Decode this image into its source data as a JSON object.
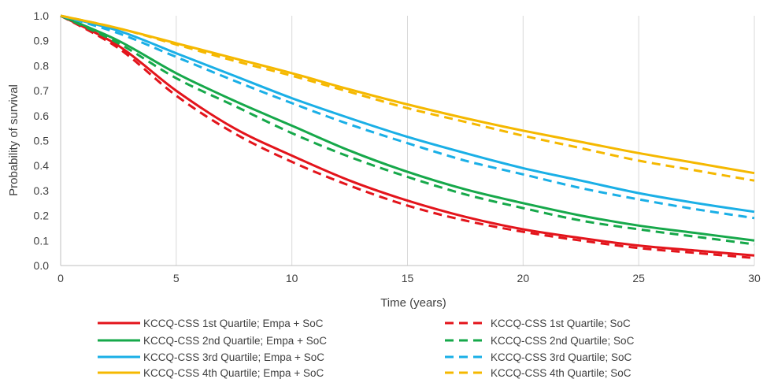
{
  "chart_data": {
    "type": "line",
    "title": "",
    "xlabel": "Time (years)",
    "ylabel": "Probability of survival",
    "xlim": [
      0,
      30
    ],
    "ylim": [
      0,
      1
    ],
    "xticks": [
      0,
      5,
      10,
      15,
      20,
      25,
      30
    ],
    "yticks": [
      0.0,
      0.1,
      0.2,
      0.3,
      0.4,
      0.5,
      0.6,
      0.7,
      0.8,
      0.9,
      1.0
    ],
    "x_tick_labels": [
      "0",
      "5",
      "10",
      "15",
      "20",
      "25",
      "30"
    ],
    "y_tick_labels": [
      "0.0",
      "0.1",
      "0.2",
      "0.3",
      "0.4",
      "0.5",
      "0.6",
      "0.7",
      "0.8",
      "0.9",
      "1.0"
    ],
    "grid": "vertical",
    "legend_position": "bottom",
    "x": [
      0,
      2.5,
      5,
      7.5,
      10,
      12.5,
      15,
      17.5,
      20,
      22.5,
      25,
      27.5,
      30
    ],
    "series": [
      {
        "name": "KCCQ-CSS 1st Quartile; Empa + SoC",
        "color": "#e3141b",
        "dash": "solid",
        "values": [
          1.0,
          0.88,
          0.7,
          0.55,
          0.44,
          0.34,
          0.26,
          0.195,
          0.145,
          0.11,
          0.08,
          0.06,
          0.04
        ]
      },
      {
        "name": "KCCQ-CSS 2nd Quartile; Empa + SoC",
        "color": "#16a84a",
        "dash": "solid",
        "values": [
          1.0,
          0.9,
          0.77,
          0.66,
          0.56,
          0.46,
          0.375,
          0.305,
          0.25,
          0.2,
          0.16,
          0.13,
          0.1
        ]
      },
      {
        "name": "KCCQ-CSS 3rd Quartile; Empa + SoC",
        "color": "#1aafe6",
        "dash": "solid",
        "values": [
          1.0,
          0.94,
          0.85,
          0.76,
          0.67,
          0.59,
          0.515,
          0.45,
          0.39,
          0.34,
          0.29,
          0.25,
          0.215
        ]
      },
      {
        "name": "KCCQ-CSS 4th Quartile; Empa + SoC",
        "color": "#f5b800",
        "dash": "solid",
        "values": [
          1.0,
          0.95,
          0.89,
          0.83,
          0.77,
          0.705,
          0.645,
          0.59,
          0.54,
          0.495,
          0.45,
          0.41,
          0.37
        ]
      },
      {
        "name": "KCCQ-CSS 1st Quartile; SoC",
        "color": "#e3141b",
        "dash": "dashed",
        "values": [
          1.0,
          0.87,
          0.68,
          0.53,
          0.415,
          0.32,
          0.24,
          0.18,
          0.135,
          0.1,
          0.07,
          0.05,
          0.03
        ]
      },
      {
        "name": "KCCQ-CSS 2nd Quartile; SoC",
        "color": "#16a84a",
        "dash": "dashed",
        "values": [
          1.0,
          0.89,
          0.75,
          0.64,
          0.53,
          0.435,
          0.355,
          0.285,
          0.23,
          0.18,
          0.145,
          0.115,
          0.085
        ]
      },
      {
        "name": "KCCQ-CSS 3rd Quartile; SoC",
        "color": "#1aafe6",
        "dash": "dashed",
        "values": [
          1.0,
          0.93,
          0.835,
          0.74,
          0.65,
          0.565,
          0.49,
          0.42,
          0.365,
          0.31,
          0.265,
          0.225,
          0.19
        ]
      },
      {
        "name": "KCCQ-CSS 4th Quartile; SoC",
        "color": "#f5b800",
        "dash": "dashed",
        "values": [
          1.0,
          0.95,
          0.885,
          0.82,
          0.76,
          0.695,
          0.63,
          0.575,
          0.52,
          0.47,
          0.42,
          0.38,
          0.34
        ]
      }
    ]
  }
}
